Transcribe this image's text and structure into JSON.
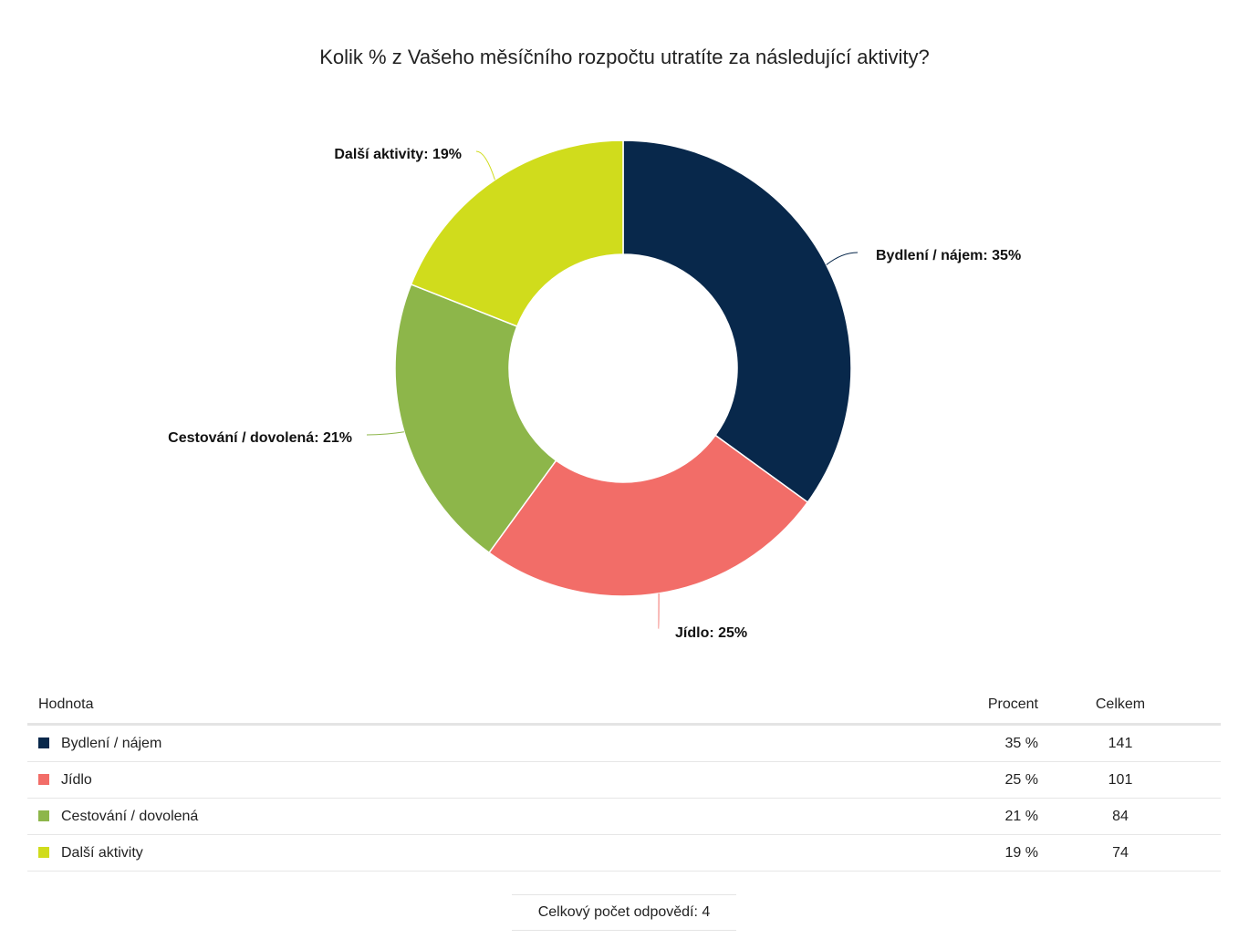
{
  "chart_data": {
    "type": "pie",
    "donut": true,
    "title": "Kolik % z Vašeho měsíčního rozpočtu utratíte za následující aktivity?",
    "categories": [
      "Bydlení / nájem",
      "Jídlo",
      "Cestování / dovolená",
      "Další aktivity"
    ],
    "values": [
      35,
      25,
      21,
      19
    ],
    "slice_labels": [
      "Bydlení / nájem: 35%",
      "Jídlo: 25%",
      "Cestování / dovolená: 21%",
      "Další aktivity: 19%"
    ],
    "colors": [
      "#08284b",
      "#f26d68",
      "#8db64a",
      "#d0dc1c"
    ]
  },
  "table": {
    "headers": {
      "label": "Hodnota",
      "percent": "Procent",
      "total": "Celkem"
    },
    "rows": [
      {
        "label": "Bydlení / nájem",
        "percent": "35 %",
        "total": "141",
        "color": "#08284b"
      },
      {
        "label": "Jídlo",
        "percent": "25 %",
        "total": "101",
        "color": "#f26d68"
      },
      {
        "label": "Cestování / dovolená",
        "percent": "21 %",
        "total": "84",
        "color": "#8db64a"
      },
      {
        "label": "Další aktivity",
        "percent": "19 %",
        "total": "74",
        "color": "#d0dc1c"
      }
    ]
  },
  "footer": {
    "total_responses": "Celkový počet odpovědí: 4"
  }
}
